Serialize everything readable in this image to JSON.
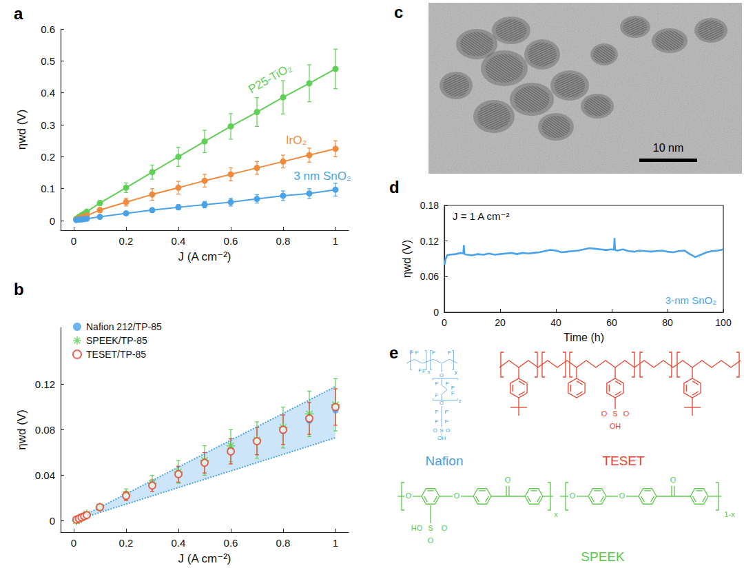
{
  "chart_data": [
    {
      "title": "a",
      "type": "line",
      "x_label": "J (A cm⁻²)",
      "y_label": "ηwd (V)",
      "xlim": [
        -0.05,
        1.05
      ],
      "xticks": [
        0,
        0.2,
        0.4,
        0.6,
        0.8,
        1
      ],
      "ylim": [
        -0.03,
        0.6
      ],
      "yticks": [
        0,
        0.1,
        0.2,
        0.3,
        0.4,
        0.5,
        0.6
      ],
      "grid": false,
      "x": [
        0.01,
        0.02,
        0.03,
        0.04,
        0.05,
        0.1,
        0.2,
        0.3,
        0.4,
        0.5,
        0.6,
        0.7,
        0.8,
        0.9,
        1
      ],
      "series": [
        {
          "name": "P25-TiO₂",
          "color": "#5fcf55",
          "marker": "circle",
          "values": [
            0.006,
            0.012,
            0.017,
            0.022,
            0.028,
            0.055,
            0.103,
            0.152,
            0.2,
            0.248,
            0.295,
            0.34,
            0.386,
            0.43,
            0.475
          ],
          "errors": [
            0.002,
            0.003,
            0.004,
            0.005,
            0.006,
            0.008,
            0.015,
            0.022,
            0.03,
            0.035,
            0.04,
            0.045,
            0.052,
            0.058,
            0.062
          ]
        },
        {
          "name": "IrO₂",
          "color": "#f08a3c",
          "marker": "circle",
          "values": [
            0.004,
            0.007,
            0.01,
            0.013,
            0.016,
            0.033,
            0.058,
            0.082,
            0.103,
            0.125,
            0.145,
            0.165,
            0.185,
            0.205,
            0.225
          ],
          "errors": [
            0.002,
            0.003,
            0.004,
            0.005,
            0.006,
            0.008,
            0.012,
            0.018,
            0.02,
            0.02,
            0.02,
            0.02,
            0.02,
            0.022,
            0.025
          ]
        },
        {
          "name": "3 nm SnO₂",
          "color": "#4aa3e8",
          "marker": "circle",
          "values": [
            0.002,
            0.003,
            0.004,
            0.005,
            0.006,
            0.012,
            0.023,
            0.033,
            0.042,
            0.05,
            0.058,
            0.068,
            0.078,
            0.085,
            0.097
          ],
          "errors": [
            0.001,
            0.001,
            0.002,
            0.002,
            0.002,
            0.003,
            0.005,
            0.007,
            0.008,
            0.01,
            0.012,
            0.013,
            0.015,
            0.015,
            0.02
          ]
        }
      ]
    },
    {
      "title": "b",
      "type": "scatter",
      "x_label": "J (A cm⁻²)",
      "y_label": "ηwd (V)",
      "xlim": [
        -0.05,
        1.05
      ],
      "xticks": [
        0,
        0.2,
        0.4,
        0.6,
        0.8,
        1
      ],
      "ylim": [
        -0.01,
        0.17
      ],
      "yticks": [
        0,
        0.04,
        0.08,
        0.12
      ],
      "grid": false,
      "legend": "top-left",
      "x": [
        0.01,
        0.02,
        0.03,
        0.04,
        0.05,
        0.1,
        0.2,
        0.3,
        0.4,
        0.5,
        0.6,
        0.7,
        0.8,
        0.9,
        1
      ],
      "band": {
        "color": "#4aa3e8",
        "line_style": "dotted",
        "x": [
          0,
          1
        ],
        "upper": [
          0,
          0.118
        ],
        "lower": [
          0,
          0.073
        ]
      },
      "series": [
        {
          "name": "Nafion 212/TP-85",
          "color": "#4aa3e8",
          "marker": "circle",
          "values": [
            0.001,
            0.002,
            0.003,
            0.004,
            0.005,
            0.012,
            0.022,
            0.032,
            0.041,
            0.051,
            0.061,
            0.07,
            0.079,
            0.088,
            0.097
          ]
        },
        {
          "name": "SPEEK/TP-85",
          "color": "#5fcf55",
          "marker": "asterisk",
          "values": [
            0,
            0.001,
            0.003,
            0.004,
            0.006,
            0.012,
            0.023,
            0.033,
            0.043,
            0.053,
            0.066,
            0.071,
            0.082,
            0.094,
            0.102
          ],
          "errors": [
            0.001,
            0.001,
            0.001,
            0.001,
            0.001,
            0.002,
            0.005,
            0.007,
            0.01,
            0.013,
            0.014,
            0.016,
            0.018,
            0.02,
            0.023
          ]
        },
        {
          "name": "TESET/TP-85",
          "color": "#e8412c",
          "marker": "open_circle",
          "values": [
            0.001,
            0.002,
            0.003,
            0.004,
            0.005,
            0.012,
            0.022,
            0.031,
            0.041,
            0.051,
            0.061,
            0.07,
            0.08,
            0.09,
            0.1
          ],
          "errors": [
            0.001,
            0.001,
            0.001,
            0.001,
            0.001,
            0.002,
            0.004,
            0.005,
            0.007,
            0.009,
            0.011,
            0.012,
            0.013,
            0.014,
            0.016
          ]
        }
      ]
    },
    {
      "title": "d",
      "type": "line",
      "x_label": "Time (h)",
      "y_label": "ηwd (V)",
      "xlim": [
        0,
        100
      ],
      "xticks": [
        0,
        20,
        40,
        60,
        80,
        100
      ],
      "ylim": [
        0,
        0.18
      ],
      "yticks": [
        0,
        0.06,
        0.12,
        0.18
      ],
      "grid": false,
      "annotations": [
        "J = 1 A cm⁻²"
      ],
      "x": [
        0,
        0.5,
        1,
        2,
        4,
        6,
        6.8,
        7,
        7.2,
        8,
        10,
        12,
        14,
        16,
        18,
        20,
        22,
        24,
        26,
        28,
        30,
        32,
        34,
        36,
        38,
        40,
        42,
        44,
        46,
        48,
        50,
        52,
        54,
        56,
        58,
        60,
        60.8,
        61,
        61.2,
        62,
        64,
        66,
        68,
        70,
        72,
        74,
        76,
        78,
        80,
        82,
        84,
        86,
        88,
        90,
        92,
        94,
        96,
        98,
        100
      ],
      "series": [
        {
          "name": "3-nm SnO₂",
          "color": "#4aa3e8",
          "values": [
            0.08,
            0.09,
            0.096,
            0.097,
            0.098,
            0.1,
            0.099,
            0.113,
            0.098,
            0.097,
            0.096,
            0.098,
            0.097,
            0.099,
            0.097,
            0.098,
            0.099,
            0.1,
            0.098,
            0.1,
            0.099,
            0.1,
            0.101,
            0.103,
            0.105,
            0.104,
            0.101,
            0.102,
            0.103,
            0.104,
            0.106,
            0.108,
            0.107,
            0.106,
            0.105,
            0.106,
            0.105,
            0.125,
            0.105,
            0.104,
            0.106,
            0.103,
            0.102,
            0.104,
            0.103,
            0.102,
            0.103,
            0.104,
            0.102,
            0.101,
            0.103,
            0.104,
            0.098,
            0.093,
            0.097,
            0.101,
            0.103,
            0.104,
            0.106
          ]
        }
      ]
    }
  ],
  "image": {
    "title": "c",
    "scale_bar": "10 nm"
  },
  "structures": {
    "title": "e",
    "molecules": [
      {
        "name": "Nafion",
        "color": "#4a9ee0",
        "labels": [
          "F",
          "F",
          "F",
          "F",
          "x",
          "F",
          "F",
          "y",
          "O",
          "F",
          "F",
          "F",
          "F",
          "F",
          "O",
          "F",
          "F",
          "F",
          "F",
          "z",
          "O",
          "S",
          "O",
          "OH"
        ]
      },
      {
        "name": "TESET",
        "color": "#e8412c",
        "labels": [
          "O",
          "S",
          "O",
          "OH"
        ]
      },
      {
        "name": "SPEEK",
        "color": "#5cc94a",
        "labels": [
          "O",
          "O",
          "O",
          "HO",
          "S",
          "O",
          "O",
          "x",
          "O",
          "O",
          "O",
          "1-x"
        ]
      }
    ]
  }
}
